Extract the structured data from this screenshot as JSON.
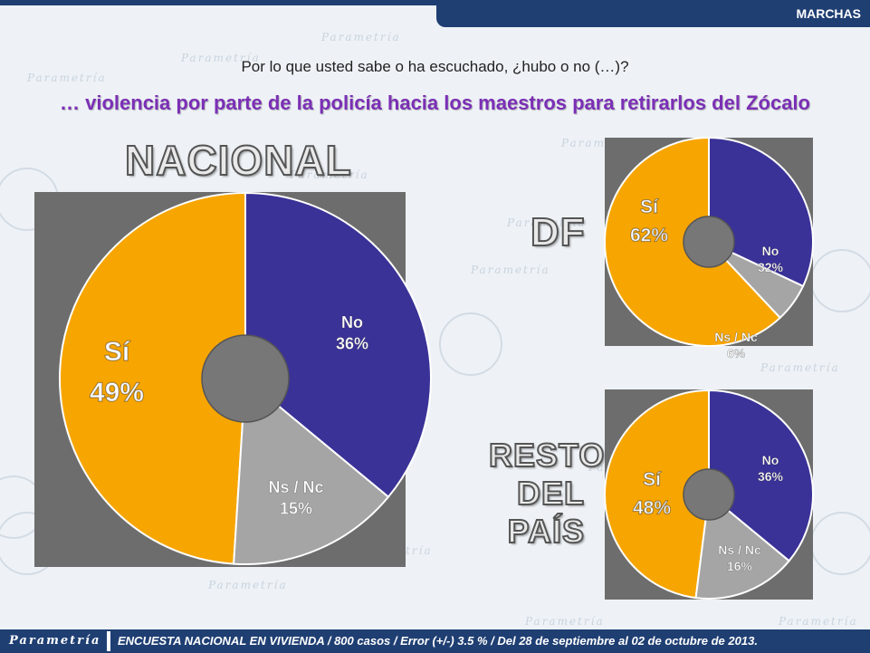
{
  "header": {
    "tag": "MARCHAS"
  },
  "question": "Por lo que usted sabe o ha escuchado, ¿hubo o no (…)?",
  "subtitle": "… violencia por parte de la policía hacia los maestros para retirarlos del Zócalo",
  "footer": {
    "logo": "Parametría",
    "text": "ENCUESTA NACIONAL EN VIVIENDA / 800 casos / Error (+/-) 3.5 % / Del 28 de septiembre al 02 de octubre de 2013."
  },
  "background": {
    "watermark": "Parametría"
  },
  "colors": {
    "si": "#f7a500",
    "no": "#3a3297",
    "nsnc": "#a5a5a5",
    "panel": "#6d6d6d",
    "hole": "#777777",
    "accent": "#1f3f73",
    "subtitle": "#7b2fb5"
  },
  "chart_data": [
    {
      "type": "pie",
      "title": "NACIONAL",
      "categories": [
        "Sí",
        "No",
        "Ns / Nc"
      ],
      "values": [
        49,
        36,
        15
      ],
      "labels": [
        "49%",
        "36%",
        "15%"
      ]
    },
    {
      "type": "pie",
      "title": "DF",
      "categories": [
        "Sí",
        "No",
        "Ns / Nc"
      ],
      "values": [
        62,
        32,
        6
      ],
      "labels": [
        "62%",
        "32%",
        "6%"
      ]
    },
    {
      "type": "pie",
      "title": "RESTO DEL PAÍS",
      "title_lines": [
        "RESTO",
        "DEL",
        "PAÍS"
      ],
      "categories": [
        "Sí",
        "No",
        "Ns / Nc"
      ],
      "values": [
        48,
        36,
        16
      ],
      "labels": [
        "48%",
        "36%",
        "16%"
      ]
    }
  ]
}
